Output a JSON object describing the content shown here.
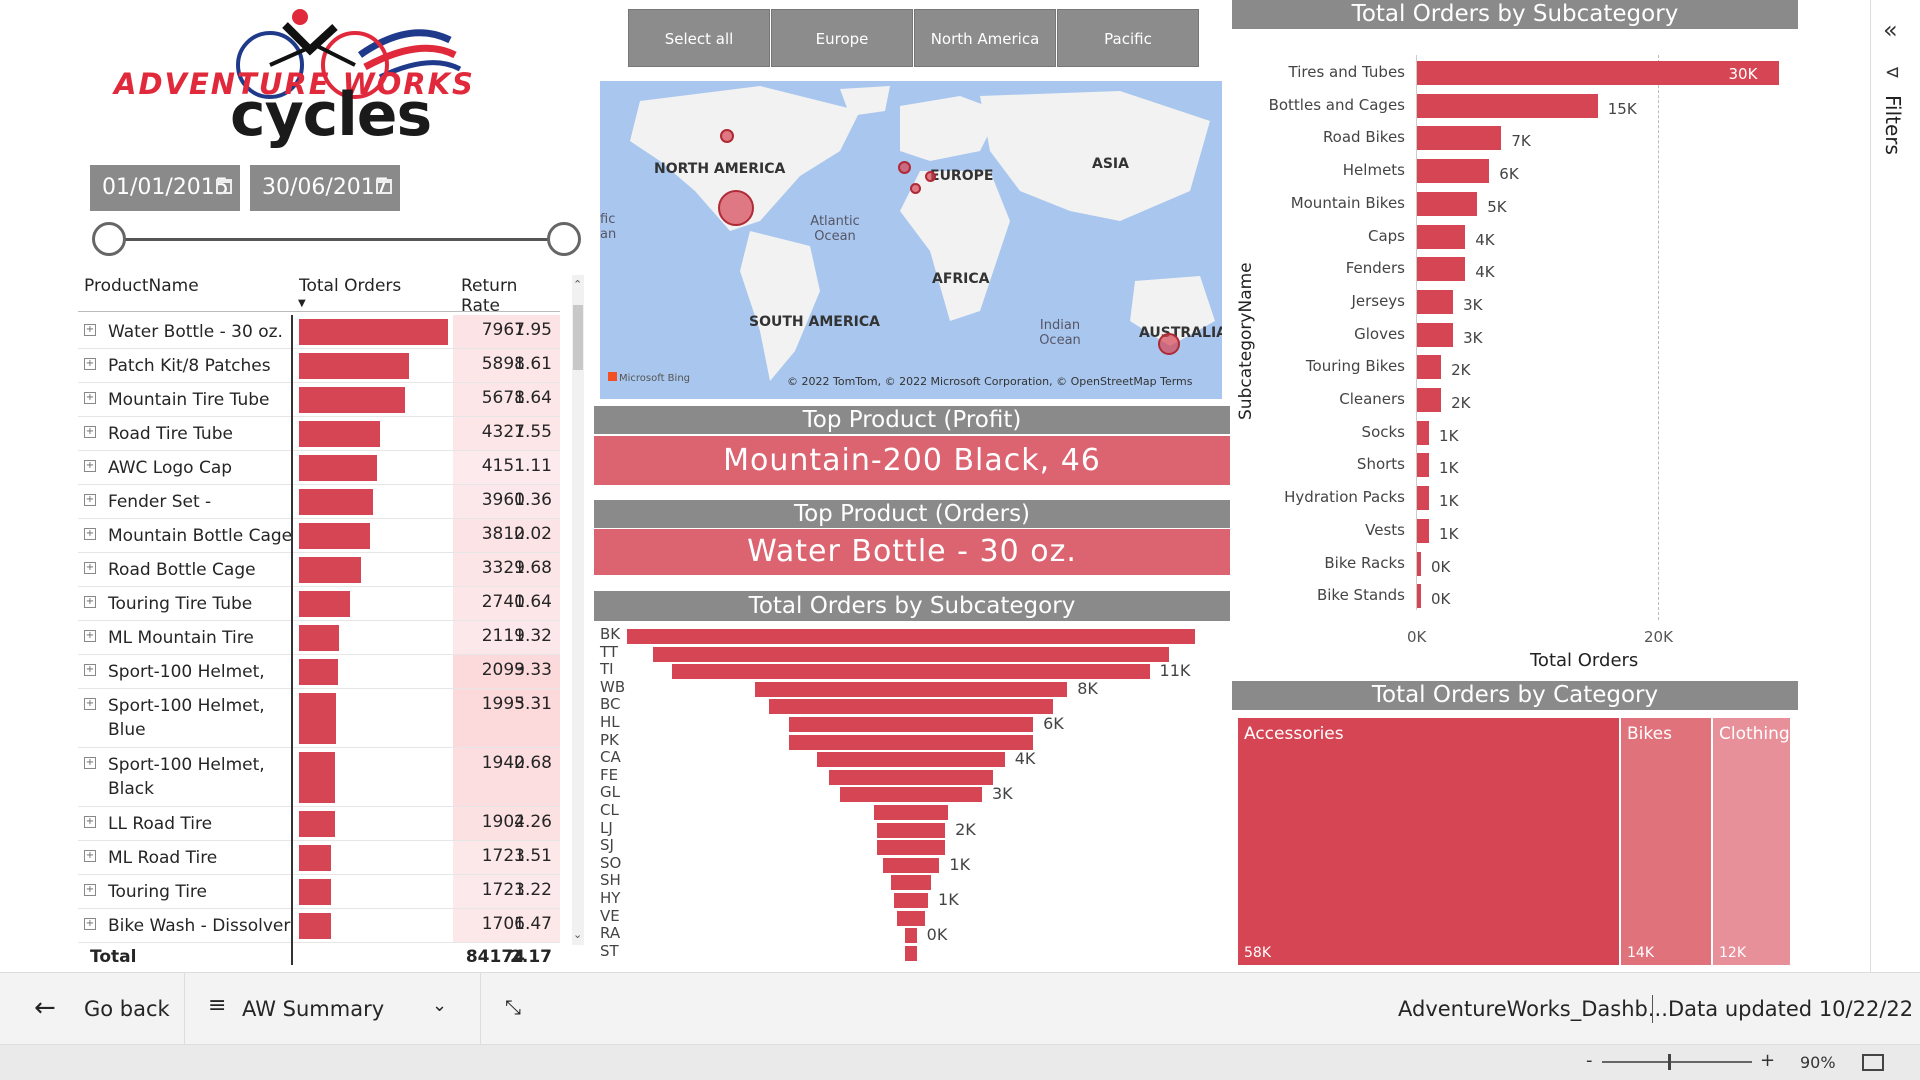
{
  "logo": {
    "brand": "ADVENTURE WORKS",
    "sub": "cycles"
  },
  "dates": {
    "start": "01/01/2015",
    "end": "30/06/2017"
  },
  "table": {
    "headers": [
      "ProductName",
      "Total Orders",
      "Return Rate"
    ],
    "rows": [
      {
        "name": "Water Bottle - 30 oz.",
        "orders": "7967",
        "rate": "1.95"
      },
      {
        "name": "Patch Kit/8 Patches",
        "orders": "5898",
        "rate": "1.61"
      },
      {
        "name": "Mountain Tire Tube",
        "orders": "5678",
        "rate": "1.64"
      },
      {
        "name": "Road Tire Tube",
        "orders": "4327",
        "rate": "1.55"
      },
      {
        "name": "AWC Logo Cap",
        "orders": "4151",
        "rate": "1.11"
      },
      {
        "name": "Fender Set -",
        "orders": "3960",
        "rate": "1.36"
      },
      {
        "name": "Mountain Bottle Cage",
        "orders": "3810",
        "rate": "2.02"
      },
      {
        "name": "Road Bottle Cage",
        "orders": "3329",
        "rate": "1.68"
      },
      {
        "name": "Touring Tire Tube",
        "orders": "2740",
        "rate": "1.64"
      },
      {
        "name": "ML Mountain Tire",
        "orders": "2119",
        "rate": "1.32"
      },
      {
        "name": "Sport-100 Helmet,",
        "orders": "2099",
        "rate": "3.33"
      },
      {
        "name": "Sport-100 Helmet, Blue",
        "orders": "1995",
        "rate": "3.31"
      },
      {
        "name": "Sport-100 Helmet, Black",
        "orders": "1940",
        "rate": "2.68"
      },
      {
        "name": "LL Road Tire",
        "orders": "1904",
        "rate": "2.26"
      },
      {
        "name": "ML Road Tire",
        "orders": "1723",
        "rate": "1.51"
      },
      {
        "name": "Touring Tire",
        "orders": "1723",
        "rate": "1.22"
      },
      {
        "name": "Bike Wash - Dissolver",
        "orders": "1706",
        "rate": "1.47"
      }
    ],
    "total": {
      "label": "Total",
      "orders": "84174",
      "rate": "2.17"
    }
  },
  "regions": [
    "Select all",
    "Europe",
    "North America",
    "Pacific"
  ],
  "map": {
    "labels": [
      "NORTH AMERICA",
      "EUROPE",
      "ASIA",
      "AFRICA",
      "SOUTH AMERICA",
      "AUSTRALIA"
    ],
    "oceans": [
      "Atlantic\nOcean",
      "Indian\nOcean",
      "fic\nan"
    ],
    "attribution": "© 2022 TomTom, © 2022 Microsoft Corporation, © OpenStreetMap  Terms",
    "bing": "Microsoft Bing"
  },
  "cards": {
    "profit_title": "Top Product (Profit)",
    "profit_value": "Mountain-200 Black, 46",
    "orders_title": "Top Product (Orders)",
    "orders_value": "Water Bottle - 30 oz."
  },
  "funnel": {
    "title": "Total Orders by Subcategory",
    "categories": [
      "BK",
      "TT",
      "TI",
      "WB",
      "BC",
      "HL",
      "PK",
      "CA",
      "FE",
      "GL",
      "CL",
      "LJ",
      "SJ",
      "SO",
      "SH",
      "HY",
      "VE",
      "RA",
      "ST"
    ],
    "labels": [
      "11K",
      "8K",
      "6K",
      "4K",
      "3K",
      "2K",
      "1K",
      "1K",
      "0K"
    ]
  },
  "chart_data": [
    {
      "type": "bar",
      "title": "Total Orders by Subcategory",
      "xlabel": "Total Orders",
      "ylabel": "SubcategoryName",
      "orientation": "horizontal",
      "categories": [
        "Tires and Tubes",
        "Bottles and Cages",
        "Road Bikes",
        "Helmets",
        "Mountain Bikes",
        "Caps",
        "Fenders",
        "Jerseys",
        "Gloves",
        "Touring Bikes",
        "Cleaners",
        "Socks",
        "Shorts",
        "Hydration Packs",
        "Vests",
        "Bike Racks",
        "Bike Stands"
      ],
      "values": [
        30000,
        15000,
        7000,
        6000,
        5000,
        4000,
        4000,
        3000,
        3000,
        2000,
        2000,
        1000,
        1000,
        1000,
        1000,
        0,
        0
      ],
      "labels": [
        "30K",
        "15K",
        "7K",
        "6K",
        "5K",
        "4K",
        "4K",
        "3K",
        "3K",
        "2K",
        "2K",
        "1K",
        "1K",
        "1K",
        "1K",
        "0K",
        "0K"
      ],
      "xticks": [
        "0K",
        "20K"
      ],
      "xlim": [
        0,
        30000
      ]
    },
    {
      "type": "heatmap",
      "title": "Total Orders by Category",
      "categories": [
        "Accessories",
        "Bikes",
        "Clothing"
      ],
      "values": [
        58000,
        14000,
        12000
      ],
      "labels": [
        "58K",
        "14K",
        "12K"
      ]
    }
  ],
  "filters": {
    "label": "Filters"
  },
  "nav": {
    "back": "Go back",
    "page": "AW Summary",
    "file": "AdventureWorks_Dashb...",
    "updated": "Data updated 10/22/22"
  },
  "status": {
    "zoom": "90%"
  },
  "colors": {
    "accent": "#d64553",
    "header_gray": "#8a8a8a",
    "card_value": "#dc6470"
  }
}
